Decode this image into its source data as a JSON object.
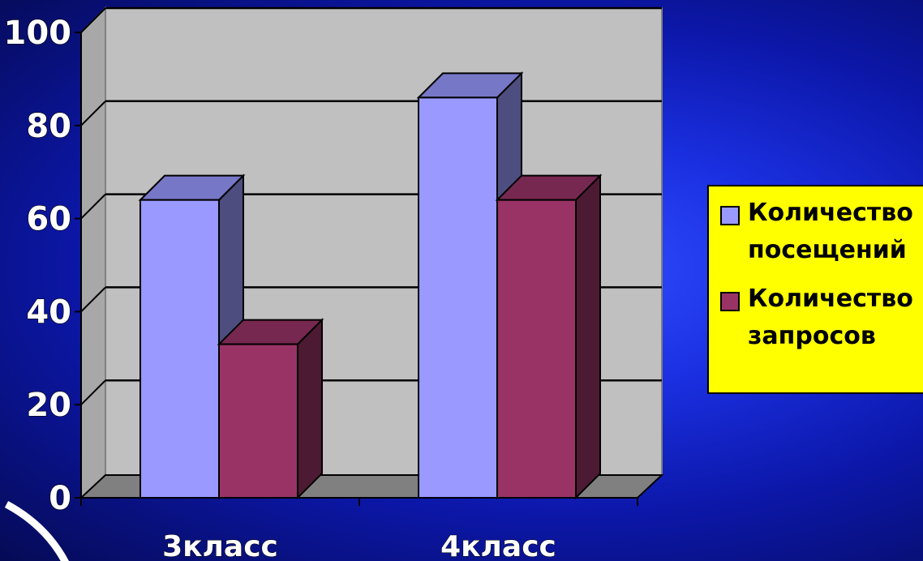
{
  "chart_data": {
    "type": "bar",
    "categories": [
      "3класс",
      "4класс"
    ],
    "series": [
      {
        "name": "Количество\nпосещений",
        "values": [
          64,
          86
        ],
        "color": "#9999ff"
      },
      {
        "name": "Количество\nзапросов",
        "values": [
          33,
          64
        ],
        "color": "#993366"
      }
    ],
    "y_ticks": [
      "0",
      "20",
      "40",
      "60",
      "80",
      "100"
    ],
    "ylim": [
      0,
      100
    ],
    "grid": true,
    "three_d": true,
    "legend_position": "right",
    "plot_background": "#c0c0c0",
    "legend_background": "#ffff00"
  }
}
